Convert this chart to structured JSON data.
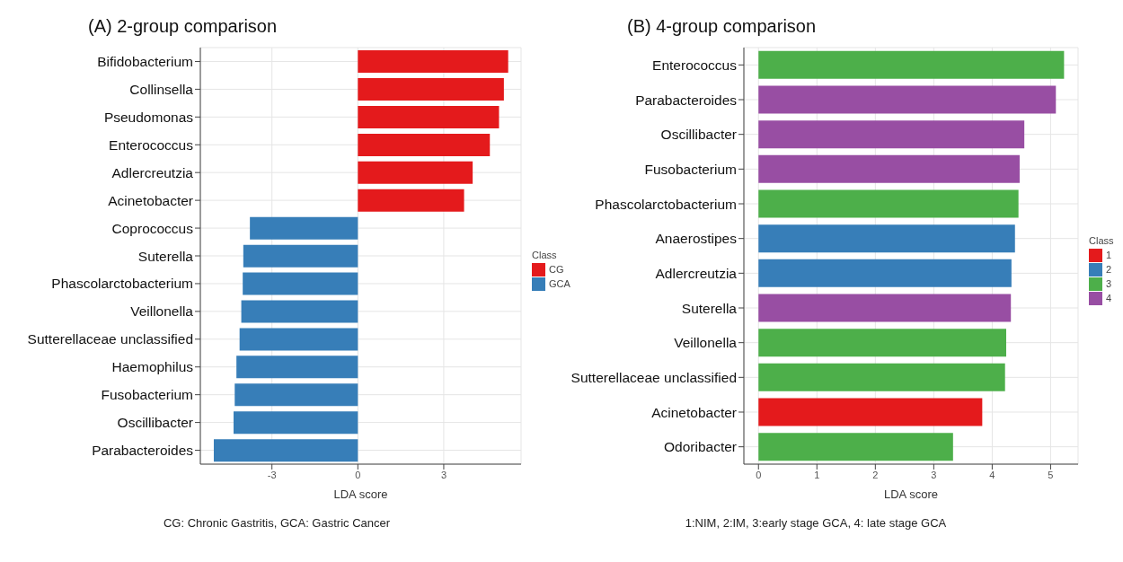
{
  "chart_data": [
    {
      "type": "bar",
      "orientation": "horizontal",
      "stacked": true,
      "title": "(A) 2-group comparison",
      "xlabel": "LDA score",
      "legend_title": "Class",
      "legend": "right",
      "grid": true,
      "categories": [
        "Bifidobacterium",
        "Collinsella",
        "Pseudomonas",
        "Enterococcus",
        "Adlercreutzia",
        "Acinetobacter",
        "Coprococcus",
        "Suterella",
        "Phascolarctobacterium",
        "Veillonella",
        "Sutterellaceae  unclassified",
        "Haemophilus",
        "Fusobacterium",
        "Oscillibacter",
        "Parabacteroides"
      ],
      "series": [
        {
          "name": "CG",
          "color": "#e41a1c",
          "values": [
            5.25,
            5.1,
            4.93,
            4.61,
            4.01,
            3.71,
            null,
            null,
            null,
            null,
            null,
            null,
            null,
            null,
            null
          ]
        },
        {
          "name": "GCA",
          "color": "#377eb8",
          "values": [
            null,
            null,
            null,
            null,
            null,
            null,
            -3.77,
            -4.0,
            -4.02,
            -4.07,
            -4.13,
            -4.24,
            -4.3,
            -4.34,
            -5.03
          ]
        }
      ],
      "xlim": [
        -5.5,
        5.7
      ],
      "xticks": [
        -3,
        0,
        3
      ],
      "annotations": [
        "CG: Chronic Gastritis, GCA: Gastric Cancer"
      ]
    },
    {
      "type": "bar",
      "orientation": "horizontal",
      "stacked": true,
      "title": "(B) 4-group comparison",
      "xlabel": "LDA score",
      "legend_title": "Class",
      "legend": "right",
      "grid": true,
      "categories": [
        "Enterococcus",
        "Parabacteroides",
        "Oscillibacter",
        "Fusobacterium",
        "Phascolarctobacterium",
        "Anaerostipes",
        "Adlercreutzia",
        "Suterella",
        "Veillonella",
        "Sutterellaceae  unclassified",
        "Acinetobacter",
        "Odoribacter"
      ],
      "series": [
        {
          "name": "1",
          "color": "#e41a1c",
          "values": [
            null,
            null,
            null,
            null,
            null,
            null,
            null,
            null,
            null,
            null,
            3.83,
            null
          ]
        },
        {
          "name": "2",
          "color": "#377eb8",
          "values": [
            null,
            null,
            null,
            null,
            null,
            4.39,
            4.33,
            null,
            null,
            null,
            null,
            null
          ]
        },
        {
          "name": "3",
          "color": "#4daf4a",
          "values": [
            5.23,
            null,
            null,
            null,
            4.45,
            null,
            null,
            null,
            4.24,
            4.22,
            null,
            3.33
          ]
        },
        {
          "name": "4",
          "color": "#984ea3",
          "values": [
            null,
            5.09,
            4.55,
            4.47,
            null,
            null,
            null,
            4.32,
            null,
            null,
            null,
            null
          ]
        }
      ],
      "xlim": [
        -0.25,
        5.47
      ],
      "xticks": [
        0,
        1,
        2,
        3,
        4,
        5
      ],
      "annotations": [
        "1:NIM, 2:IM, 3:early stage GCA, 4: late stage GCA"
      ]
    }
  ]
}
